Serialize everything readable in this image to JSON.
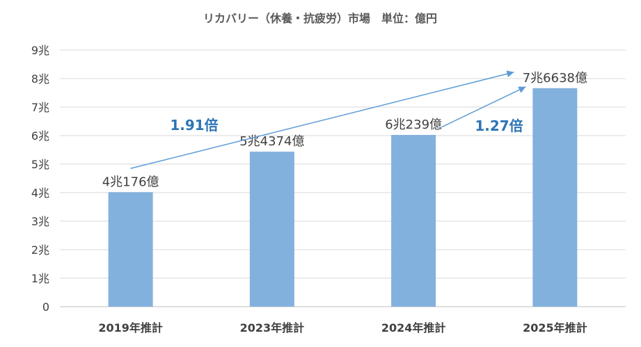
{
  "chart_data": {
    "type": "bar",
    "title": "リカバリー（休養・抗疲労）市場　単位：億円",
    "xlabel": "",
    "ylabel": "",
    "categories": [
      "2019年推計",
      "2023年推計",
      "2024年推計",
      "2025年推計"
    ],
    "values": [
      40176,
      54374,
      60239,
      76638
    ],
    "value_labels": [
      "4兆176億",
      "5兆4374億",
      "6兆239億",
      "7兆6638億"
    ],
    "ylim": [
      0,
      90000
    ],
    "yticks": [
      0,
      10000,
      20000,
      30000,
      40000,
      50000,
      60000,
      70000,
      80000,
      90000
    ],
    "ytick_labels": [
      "0",
      "1兆",
      "2兆",
      "3兆",
      "4兆",
      "5兆",
      "6兆",
      "7兆",
      "8兆",
      "9兆"
    ],
    "grid": true,
    "legend": "none",
    "colors": {
      "bar": "#83b1dd",
      "grid": "#d9d9d9",
      "arrow": "#5b9bd5",
      "annotation_text": "#2e74b5",
      "text": "#404040"
    },
    "annotations": [
      {
        "text": "1.91倍",
        "from_category": "2019年推計",
        "to_category": "2025年推計"
      },
      {
        "text": "1.27倍",
        "from_category": "2024年推計",
        "to_category": "2025年推計"
      }
    ]
  }
}
